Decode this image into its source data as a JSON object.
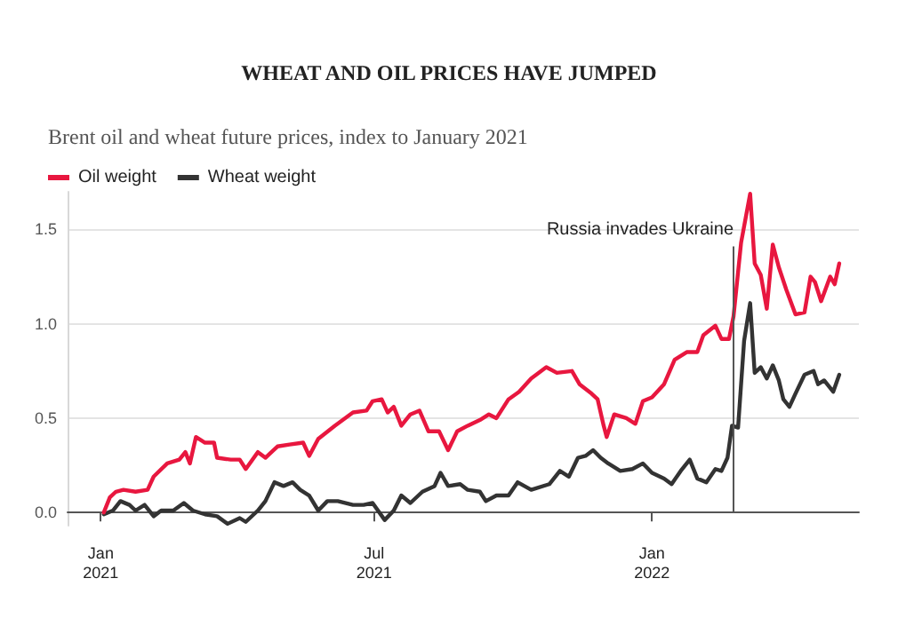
{
  "chart_data": {
    "type": "line",
    "title": "WHEAT AND OIL PRICES HAVE JUMPED",
    "subtitle": "Brent oil and wheat future prices, index to January 2021",
    "legend": "top left",
    "grid": "y",
    "marker": "none",
    "line_style": "solid",
    "xlim": [
      "2020-12-10",
      "2022-05-18"
    ],
    "xticks": [
      {
        "value": "2021-01-01",
        "label": "Jan\n2021"
      },
      {
        "value": "2021-07-01",
        "label": "Jul\n2021"
      },
      {
        "value": "2022-01-01",
        "label": "Jan\n2022"
      }
    ],
    "ylim": [
      -0.07,
      1.7
    ],
    "yticks": [
      {
        "value": 0,
        "label": "0.0"
      },
      {
        "value": 0.5,
        "label": "0.5"
      },
      {
        "value": 1,
        "label": "1.0"
      },
      {
        "value": 1.5,
        "label": "1.5"
      }
    ],
    "ref_lines": [
      {
        "axis": "x",
        "value": "2022-02-24",
        "label": "Russia invades Ukraine",
        "color": "#555555"
      }
    ],
    "series": [
      {
        "name": "Oil weight",
        "color": "#e8173f",
        "x": [
          "2021-01-03",
          "2021-01-07",
          "2021-01-11",
          "2021-01-16",
          "2021-01-24",
          "2021-02-01",
          "2021-02-05",
          "2021-02-14",
          "2021-02-22",
          "2021-02-26",
          "2021-03-01",
          "2021-03-05",
          "2021-03-11",
          "2021-03-17",
          "2021-03-19",
          "2021-03-28",
          "2021-04-03",
          "2021-04-07",
          "2021-04-15",
          "2021-04-20",
          "2021-04-28",
          "2021-05-06",
          "2021-05-15",
          "2021-05-19",
          "2021-05-25",
          "2021-06-05",
          "2021-06-17",
          "2021-06-26",
          "2021-06-30",
          "2021-07-06",
          "2021-07-10",
          "2021-07-14",
          "2021-07-19",
          "2021-07-25",
          "2021-07-31",
          "2021-08-06",
          "2021-08-13",
          "2021-08-19",
          "2021-08-25",
          "2021-09-01",
          "2021-09-09",
          "2021-09-15",
          "2021-09-20",
          "2021-09-28",
          "2021-10-05",
          "2021-10-13",
          "2021-10-23",
          "2021-10-30",
          "2021-11-09",
          "2021-11-14",
          "2021-11-22",
          "2021-11-26",
          "2021-11-30",
          "2021-12-02",
          "2021-12-07",
          "2021-12-15",
          "2021-12-21",
          "2021-12-26",
          "2022-01-01",
          "2022-01-09",
          "2022-01-16",
          "2022-01-24",
          "2022-01-31",
          "2022-02-04",
          "2022-02-12",
          "2022-02-16",
          "2022-02-21",
          "2022-02-24",
          "2022-03-01",
          "2022-03-07",
          "2022-03-10",
          "2022-03-14",
          "2022-03-18",
          "2022-03-22",
          "2022-03-26",
          "2022-03-31",
          "2022-04-06",
          "2022-04-12",
          "2022-04-16",
          "2022-04-19",
          "2022-04-23",
          "2022-04-29",
          "2022-05-02",
          "2022-05-05"
        ],
        "values": [
          0.0,
          0.08,
          0.11,
          0.12,
          0.11,
          0.12,
          0.19,
          0.26,
          0.28,
          0.32,
          0.26,
          0.4,
          0.37,
          0.37,
          0.29,
          0.28,
          0.28,
          0.23,
          0.32,
          0.29,
          0.35,
          0.36,
          0.37,
          0.3,
          0.39,
          0.46,
          0.53,
          0.54,
          0.59,
          0.6,
          0.53,
          0.56,
          0.46,
          0.52,
          0.54,
          0.43,
          0.43,
          0.33,
          0.43,
          0.46,
          0.49,
          0.52,
          0.5,
          0.6,
          0.64,
          0.71,
          0.77,
          0.74,
          0.75,
          0.68,
          0.63,
          0.6,
          0.46,
          0.4,
          0.52,
          0.5,
          0.47,
          0.59,
          0.61,
          0.68,
          0.81,
          0.85,
          0.85,
          0.94,
          0.99,
          0.92,
          0.92,
          1.04,
          1.43,
          1.69,
          1.32,
          1.26,
          1.08,
          1.42,
          1.3,
          1.18,
          1.05,
          1.06,
          1.25,
          1.22,
          1.12,
          1.25,
          1.21,
          1.32
        ]
      },
      {
        "name": "Wheat weight",
        "color": "#333333",
        "x": [
          "2021-01-03",
          "2021-01-09",
          "2021-01-14",
          "2021-01-20",
          "2021-01-24",
          "2021-01-30",
          "2021-02-05",
          "2021-02-10",
          "2021-02-18",
          "2021-02-25",
          "2021-03-03",
          "2021-03-11",
          "2021-03-19",
          "2021-03-26",
          "2021-04-03",
          "2021-04-07",
          "2021-04-15",
          "2021-04-20",
          "2021-04-26",
          "2021-05-02",
          "2021-05-08",
          "2021-05-13",
          "2021-05-19",
          "2021-05-25",
          "2021-05-31",
          "2021-06-07",
          "2021-06-17",
          "2021-06-24",
          "2021-06-30",
          "2021-07-08",
          "2021-07-14",
          "2021-07-19",
          "2021-07-25",
          "2021-08-02",
          "2021-08-10",
          "2021-08-14",
          "2021-08-19",
          "2021-08-27",
          "2021-09-01",
          "2021-09-09",
          "2021-09-13",
          "2021-09-20",
          "2021-09-28",
          "2021-10-04",
          "2021-10-13",
          "2021-10-25",
          "2021-11-01",
          "2021-11-07",
          "2021-11-13",
          "2021-11-18",
          "2021-11-23",
          "2021-11-28",
          "2021-12-03",
          "2021-12-11",
          "2021-12-19",
          "2021-12-26",
          "2022-01-01",
          "2022-01-09",
          "2022-01-14",
          "2022-01-20",
          "2022-01-26",
          "2022-01-31",
          "2022-02-06",
          "2022-02-12",
          "2022-02-16",
          "2022-02-20",
          "2022-02-23",
          "2022-02-27",
          "2022-03-03",
          "2022-03-07",
          "2022-03-10",
          "2022-03-14",
          "2022-03-18",
          "2022-03-22",
          "2022-03-26",
          "2022-03-29",
          "2022-04-02",
          "2022-04-06",
          "2022-04-12",
          "2022-04-18",
          "2022-04-21",
          "2022-04-25",
          "2022-05-01",
          "2022-05-05"
        ],
        "values": [
          -0.01,
          0.01,
          0.06,
          0.04,
          0.01,
          0.04,
          -0.02,
          0.01,
          0.01,
          0.05,
          0.01,
          -0.01,
          -0.02,
          -0.06,
          -0.03,
          -0.05,
          0.01,
          0.06,
          0.16,
          0.14,
          0.16,
          0.12,
          0.09,
          0.01,
          0.06,
          0.06,
          0.04,
          0.04,
          0.05,
          -0.04,
          0.01,
          0.09,
          0.05,
          0.11,
          0.14,
          0.21,
          0.14,
          0.15,
          0.12,
          0.11,
          0.06,
          0.09,
          0.09,
          0.16,
          0.12,
          0.15,
          0.22,
          0.19,
          0.29,
          0.3,
          0.33,
          0.29,
          0.26,
          0.22,
          0.23,
          0.26,
          0.21,
          0.18,
          0.15,
          0.22,
          0.28,
          0.18,
          0.16,
          0.23,
          0.22,
          0.29,
          0.46,
          0.45,
          0.91,
          1.11,
          0.74,
          0.77,
          0.71,
          0.78,
          0.7,
          0.6,
          0.56,
          0.63,
          0.73,
          0.75,
          0.68,
          0.7,
          0.64,
          0.73
        ]
      }
    ]
  }
}
